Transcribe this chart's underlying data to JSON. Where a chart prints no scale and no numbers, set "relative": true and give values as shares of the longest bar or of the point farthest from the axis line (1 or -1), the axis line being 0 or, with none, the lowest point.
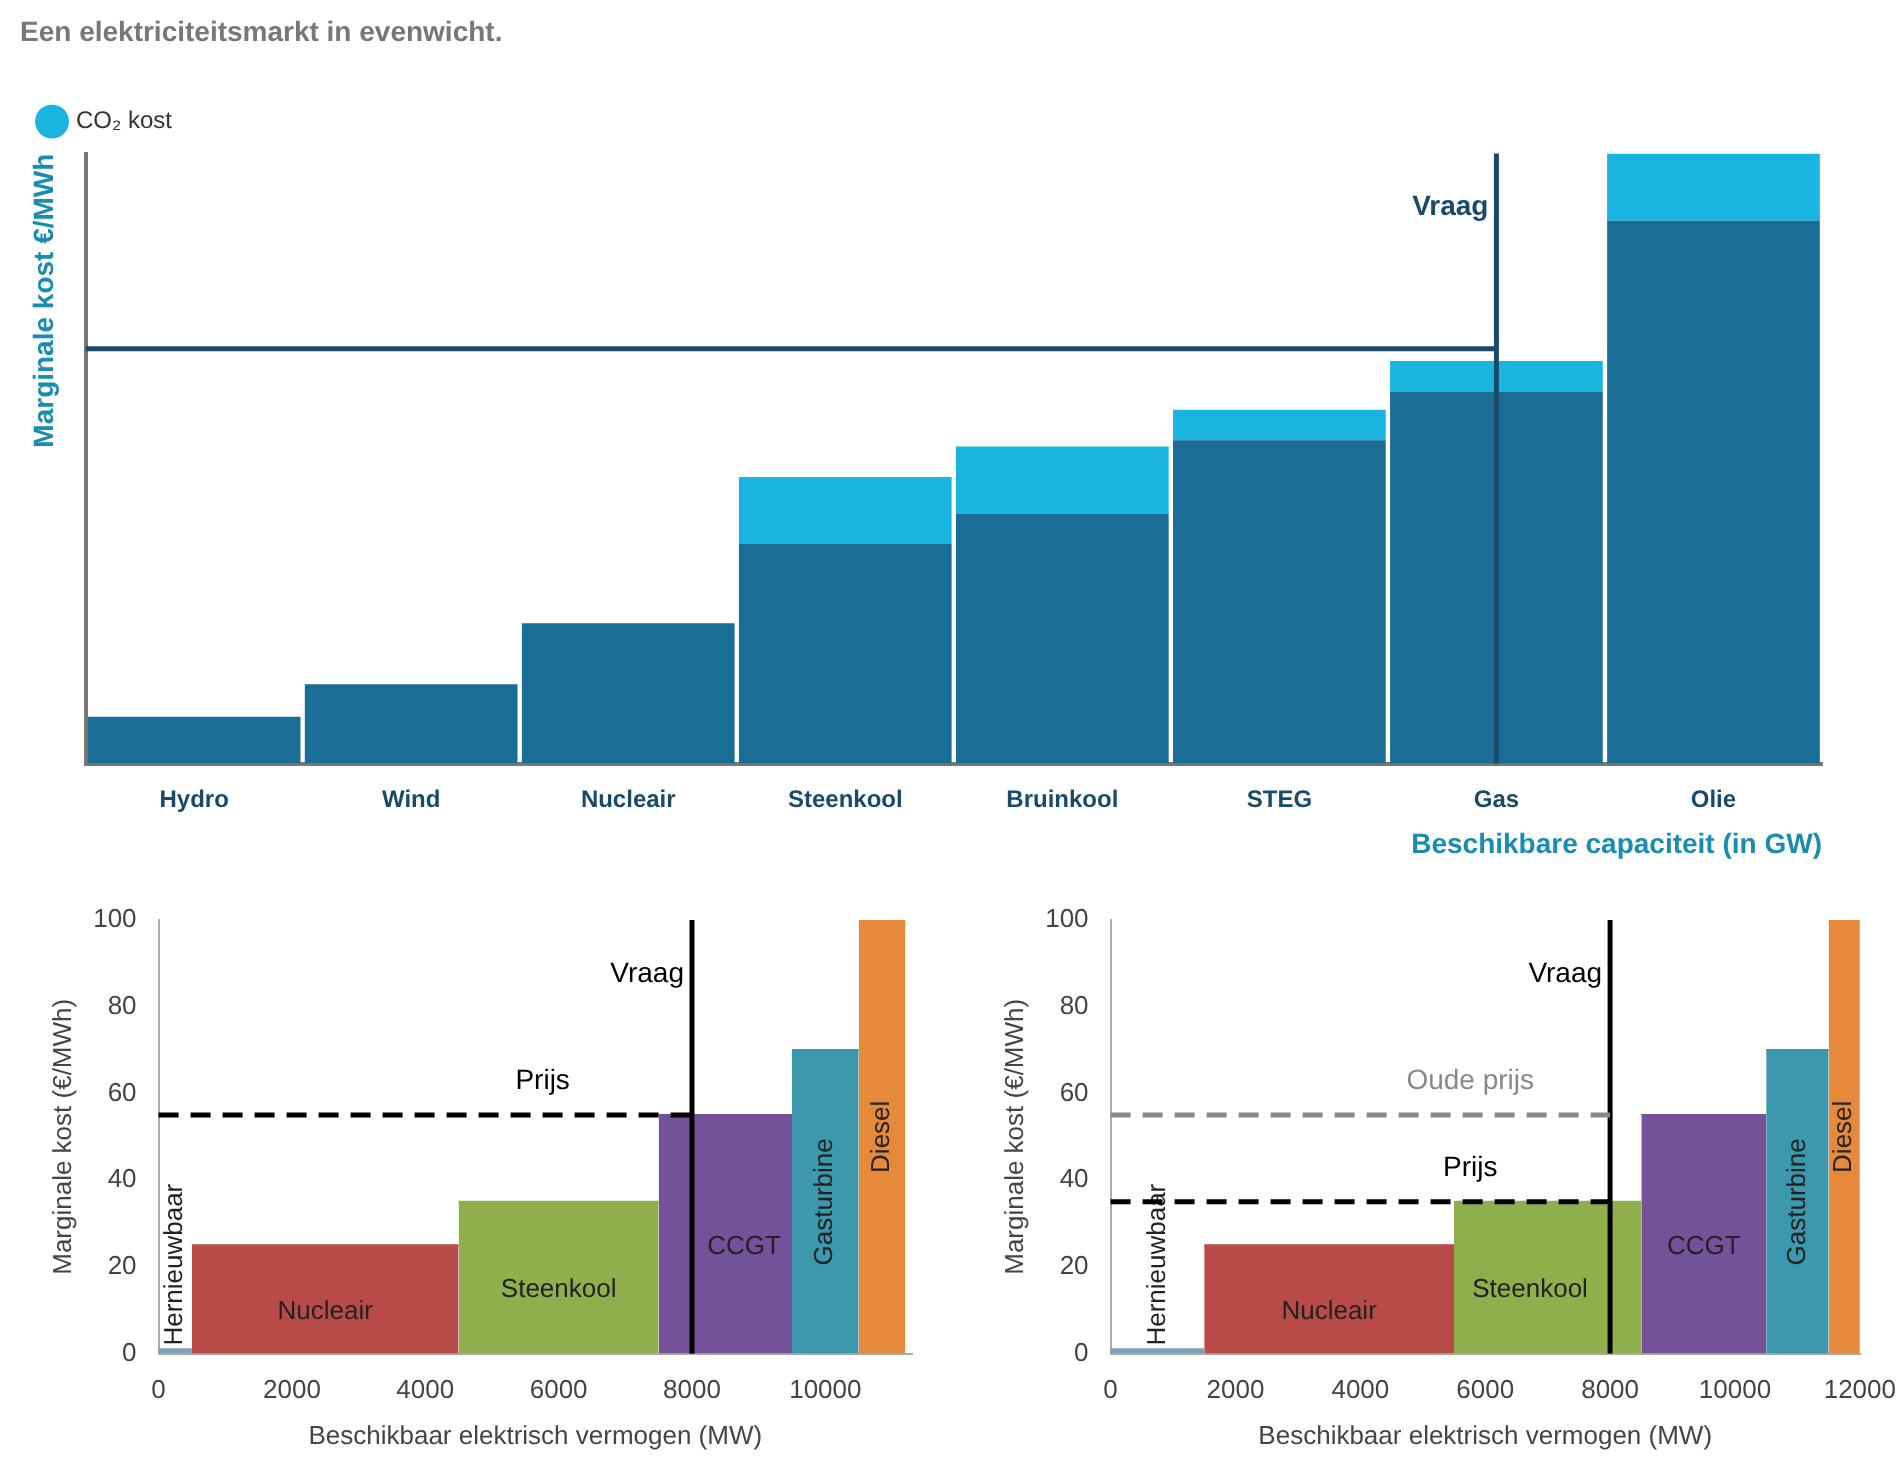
{
  "chart_data": [
    {
      "type": "bar",
      "title": "Een elektriciteitsmarkt in evenwicht.",
      "ylabel": "Marginale kost €/MWh",
      "xlabel": "Beschikbare capaciteit (in GW)",
      "relative": true,
      "stacked": true,
      "legend": "top left",
      "categories": [
        "Hydro",
        "Wind",
        "Nucleair",
        "Steenkool",
        "Bruinkool",
        "STEG",
        "Gas",
        "Olie"
      ],
      "series": [
        {
          "color": "#1a6e96",
          "values": [
            0.077,
            0.13,
            0.23,
            0.36,
            0.41,
            0.53,
            0.61,
            0.89
          ]
        },
        {
          "name": "CO₂ kost",
          "color": "#1ab4e0",
          "values": [
            0,
            0,
            0,
            0.11,
            0.11,
            0.05,
            0.05,
            0.11
          ]
        }
      ],
      "ref_lines": [
        {
          "axis": "x",
          "value": "Gas",
          "label": "Vraag",
          "color": "#1a4a6a",
          "line_style": "solid"
        },
        {
          "axis": "y",
          "value": 0.68,
          "color": "#1a4a6a",
          "line_style": "solid"
        }
      ]
    },
    {
      "type": "area",
      "xlabel": "Beschikbaar elektrisch vermogen (MW)",
      "ylabel": "Marginale kost (€/MWh)",
      "xlim": [
        0,
        11300
      ],
      "xticks": [
        0,
        2000,
        4000,
        6000,
        8000,
        10000
      ],
      "ylim": [
        0,
        100
      ],
      "yticks": [
        0,
        20,
        40,
        60,
        80,
        100
      ],
      "legend": false,
      "series": [
        {
          "name": "Hernieuwbaar",
          "color": "#7f9fbf",
          "x": [
            0,
            500
          ],
          "values": [
            1,
            1
          ]
        },
        {
          "name": "Nucleair",
          "color": "#b84a48",
          "x": [
            500,
            4500
          ],
          "values": [
            25,
            25
          ]
        },
        {
          "name": "Steenkool",
          "color": "#8fae4c",
          "x": [
            4500,
            7500
          ],
          "values": [
            35,
            35
          ]
        },
        {
          "name": "CCGT",
          "color": "#735299",
          "x": [
            7500,
            9500
          ],
          "values": [
            55,
            55
          ]
        },
        {
          "name": "Gasturbine",
          "color": "#3d97ad",
          "x": [
            9500,
            10500
          ],
          "values": [
            70,
            70
          ]
        },
        {
          "name": "Diesel",
          "color": "#e6893a",
          "x": [
            10500,
            11200
          ],
          "values": [
            100,
            100
          ]
        }
      ],
      "ref_lines": [
        {
          "axis": "x",
          "value": 8000,
          "label": "Vraag",
          "color": "#000000",
          "line_style": "solid"
        },
        {
          "axis": "y",
          "value": 55,
          "label": "Prijs",
          "color": "#000000",
          "line_style": "dashed"
        }
      ]
    },
    {
      "type": "area",
      "xlabel": "Beschikbaar elektrisch vermogen (MW)",
      "ylabel": "Marginale kost (€/MWh)",
      "xlim": [
        0,
        12000
      ],
      "xticks": [
        0,
        2000,
        4000,
        6000,
        8000,
        10000,
        12000
      ],
      "ylim": [
        0,
        100
      ],
      "yticks": [
        0,
        20,
        40,
        60,
        80,
        100
      ],
      "legend": false,
      "series": [
        {
          "name": "Hernieuwbaar",
          "color": "#7f9fbf",
          "x": [
            0,
            1500
          ],
          "values": [
            1,
            1
          ]
        },
        {
          "name": "Nucleair",
          "color": "#b84a48",
          "x": [
            1500,
            5500
          ],
          "values": [
            25,
            25
          ]
        },
        {
          "name": "Steenkool",
          "color": "#8fae4c",
          "x": [
            5500,
            8500
          ],
          "values": [
            35,
            35
          ]
        },
        {
          "name": "CCGT",
          "color": "#735299",
          "x": [
            8500,
            10500
          ],
          "values": [
            55,
            55
          ]
        },
        {
          "name": "Gasturbine",
          "color": "#3d97ad",
          "x": [
            10500,
            11500
          ],
          "values": [
            70,
            70
          ]
        },
        {
          "name": "Diesel",
          "color": "#e6893a",
          "x": [
            11500,
            12000
          ],
          "values": [
            100,
            100
          ]
        }
      ],
      "ref_lines": [
        {
          "axis": "x",
          "value": 8000,
          "label": "Vraag",
          "color": "#000000",
          "line_style": "solid"
        },
        {
          "axis": "y",
          "value": 55,
          "label": "Oude prijs",
          "color": "#888888",
          "line_style": "dashed"
        },
        {
          "axis": "y",
          "value": 35,
          "label": "Prijs",
          "color": "#000000",
          "line_style": "dashed"
        }
      ]
    }
  ]
}
